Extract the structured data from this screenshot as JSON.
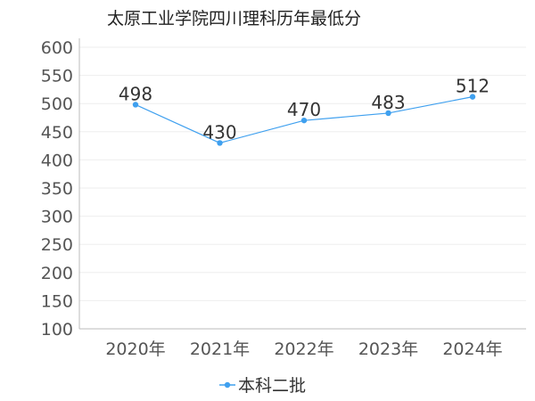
{
  "colors": {
    "series": "#3fa0ef",
    "axis": "#bbbbbb",
    "grid": "#eeeeee"
  },
  "chart_data": {
    "type": "line",
    "title": "太原工业学院四川理科历年最低分",
    "xlabel": "",
    "ylabel": "",
    "categories": [
      "2020年",
      "2021年",
      "2022年",
      "2023年",
      "2024年"
    ],
    "series": [
      {
        "name": "本科二批",
        "values": [
          498,
          430,
          470,
          483,
          512
        ]
      }
    ],
    "ylim": [
      100,
      600
    ],
    "yticks": [
      100,
      150,
      200,
      250,
      300,
      350,
      400,
      450,
      500,
      550,
      600
    ],
    "grid": true,
    "legend": "bottom-center",
    "data_labels": true
  }
}
